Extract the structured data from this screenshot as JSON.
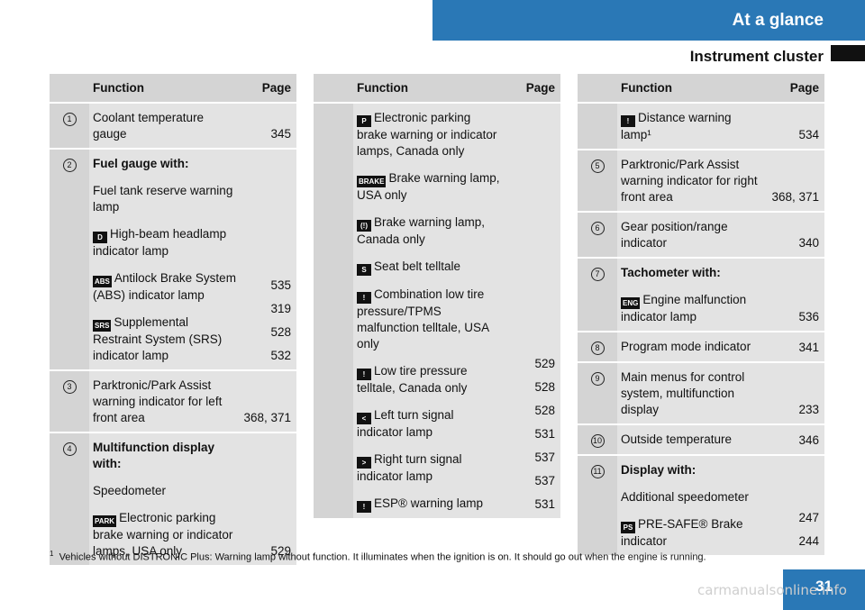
{
  "header": {
    "title": "At a glance",
    "section": "Instrument cluster"
  },
  "columns": {
    "function": "Function",
    "page": "Page"
  },
  "col1": [
    {
      "num": "1",
      "items": [
        {
          "text": "Coolant temperature gauge",
          "page": "345"
        }
      ]
    },
    {
      "num": "2",
      "items": [
        {
          "text": "Fuel gauge with:",
          "bold": true,
          "page": ""
        },
        {
          "text": "Fuel tank reserve warning lamp",
          "page": "535"
        },
        {
          "icon": "D",
          "text": "High-beam headlamp indicator lamp",
          "page": "319"
        },
        {
          "icon": "ABS",
          "text": "Antilock Brake System (ABS) indicator lamp",
          "page": "528"
        },
        {
          "icon": "SRS",
          "text": "Supplemental Restraint System (SRS) indicator lamp",
          "page": "532"
        }
      ]
    },
    {
      "num": "3",
      "items": [
        {
          "text": "Parktronic/Park Assist warning indicator for left front area",
          "page": "368, 371"
        }
      ]
    },
    {
      "num": "4",
      "items": [
        {
          "text": "Multifunction display with:",
          "bold": true,
          "page": ""
        },
        {
          "text": "Speedometer",
          "page": ""
        },
        {
          "icon": "PARK",
          "text": "Electronic parking brake warning or indicator lamps, USA only",
          "page": "529"
        }
      ]
    }
  ],
  "col2": [
    {
      "num": "",
      "items": [
        {
          "icon": "P",
          "text": "Electronic parking brake warning or indicator lamps, Canada only",
          "page": "529"
        },
        {
          "icon": "BRAKE",
          "text": "Brake warning lamp, USA only",
          "page": "528"
        },
        {
          "icon": "(!)",
          "text": "Brake warning lamp, Canada only",
          "page": "528"
        },
        {
          "icon": "S",
          "text": "Seat belt telltale",
          "page": "531"
        },
        {
          "icon": "!",
          "text": "Combination low tire pressure/TPMS malfunction telltale, USA only",
          "page": "537"
        },
        {
          "icon": "!",
          "text": "Low tire pressure telltale, Canada only",
          "page": "537"
        },
        {
          "icon": "<",
          "text": "Left turn signal indicator lamp",
          "page": ""
        },
        {
          "icon": ">",
          "text": "Right turn signal indicator lamp",
          "page": ""
        },
        {
          "icon": "!",
          "text": "ESP® warning lamp",
          "page": "531"
        }
      ]
    }
  ],
  "col3": [
    {
      "num": "",
      "items": [
        {
          "icon": "!",
          "text": "Distance warning lamp¹",
          "page": "534"
        }
      ]
    },
    {
      "num": "5",
      "items": [
        {
          "text": "Parktronic/Park Assist warning indicator for right front area",
          "page": "368, 371"
        }
      ]
    },
    {
      "num": "6",
      "items": [
        {
          "text": "Gear position/range indicator",
          "page": "340"
        }
      ]
    },
    {
      "num": "7",
      "items": [
        {
          "text": "Tachometer with:",
          "bold": true,
          "page": ""
        },
        {
          "icon": "ENG",
          "text": "Engine malfunction indicator lamp",
          "page": "536"
        }
      ]
    },
    {
      "num": "8",
      "items": [
        {
          "text": "Program mode indicator",
          "page": "341"
        }
      ]
    },
    {
      "num": "9",
      "items": [
        {
          "text": "Main menus for control system, multifunction display",
          "page": "233"
        }
      ]
    },
    {
      "num": "10",
      "items": [
        {
          "text": "Outside temperature",
          "page": "346"
        }
      ]
    },
    {
      "num": "11",
      "items": [
        {
          "text": "Display with:",
          "bold": true,
          "page": ""
        },
        {
          "text": "Additional speedometer",
          "page": "247"
        },
        {
          "icon": "PS",
          "text": "PRE-SAFE® Brake indicator",
          "page": "244"
        }
      ]
    }
  ],
  "footnote": {
    "mark": "1",
    "text": "Vehicles without DISTRONIC Plus: Warning lamp without function. It illuminates when the ignition is on. It should go out when the engine is running."
  },
  "page_number": "31",
  "watermark": "carmanualsonline.info"
}
